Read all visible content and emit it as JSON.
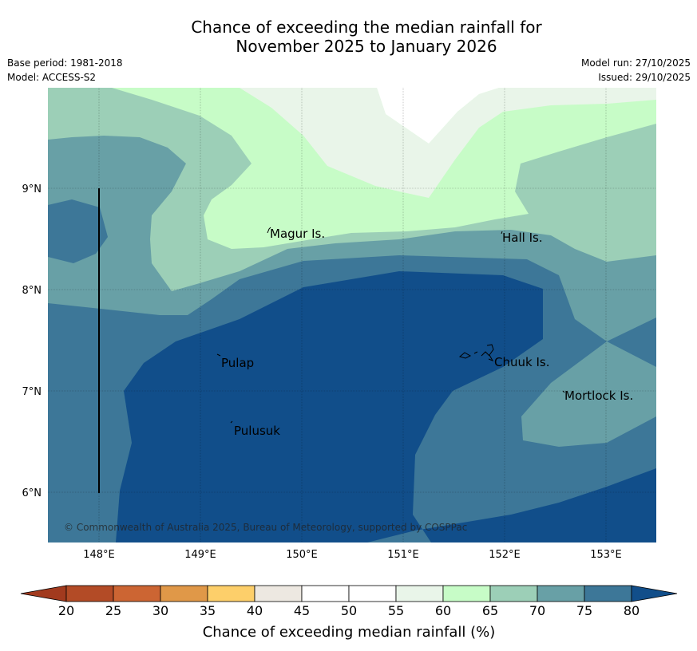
{
  "header": {
    "title_line1": "Chance of exceeding the median rainfall for",
    "title_line2": "November 2025 to January 2026",
    "base_period": "Base period: 1981-2018",
    "model": "Model: ACCESS-S2",
    "model_run": "Model run: 27/10/2025",
    "issued": "Issued: 29/10/2025"
  },
  "map": {
    "lon_ticks": [
      "148°E",
      "149°E",
      "150°E",
      "151°E",
      "152°E",
      "153°E"
    ],
    "lat_ticks": [
      "9°N",
      "8°N",
      "7°N",
      "6°N"
    ],
    "places": [
      {
        "name": "Magur Is."
      },
      {
        "name": "Hall Is."
      },
      {
        "name": "Pulap"
      },
      {
        "name": "Chuuk Is."
      },
      {
        "name": "Mortlock Is."
      },
      {
        "name": "Pulusuk"
      }
    ],
    "copyright": "© Commonwealth of Australia 2025, Bureau of Meteorology, supported by COSPPac"
  },
  "colorbar": {
    "ticks": [
      "20",
      "25",
      "30",
      "35",
      "40",
      "45",
      "50",
      "55",
      "60",
      "65",
      "70",
      "75",
      "80"
    ],
    "colors": [
      "#a23a1e",
      "#b34b26",
      "#cc6533",
      "#e09848",
      "#fdcf6a",
      "#ede8e1",
      "#ffffff",
      "#ffffff",
      "#e9f5e9",
      "#c7fcc7",
      "#9ccfb7",
      "#68a0a6",
      "#3d7798",
      "#114e8a"
    ],
    "label": "Chance of exceeding median rainfall (%)"
  }
}
